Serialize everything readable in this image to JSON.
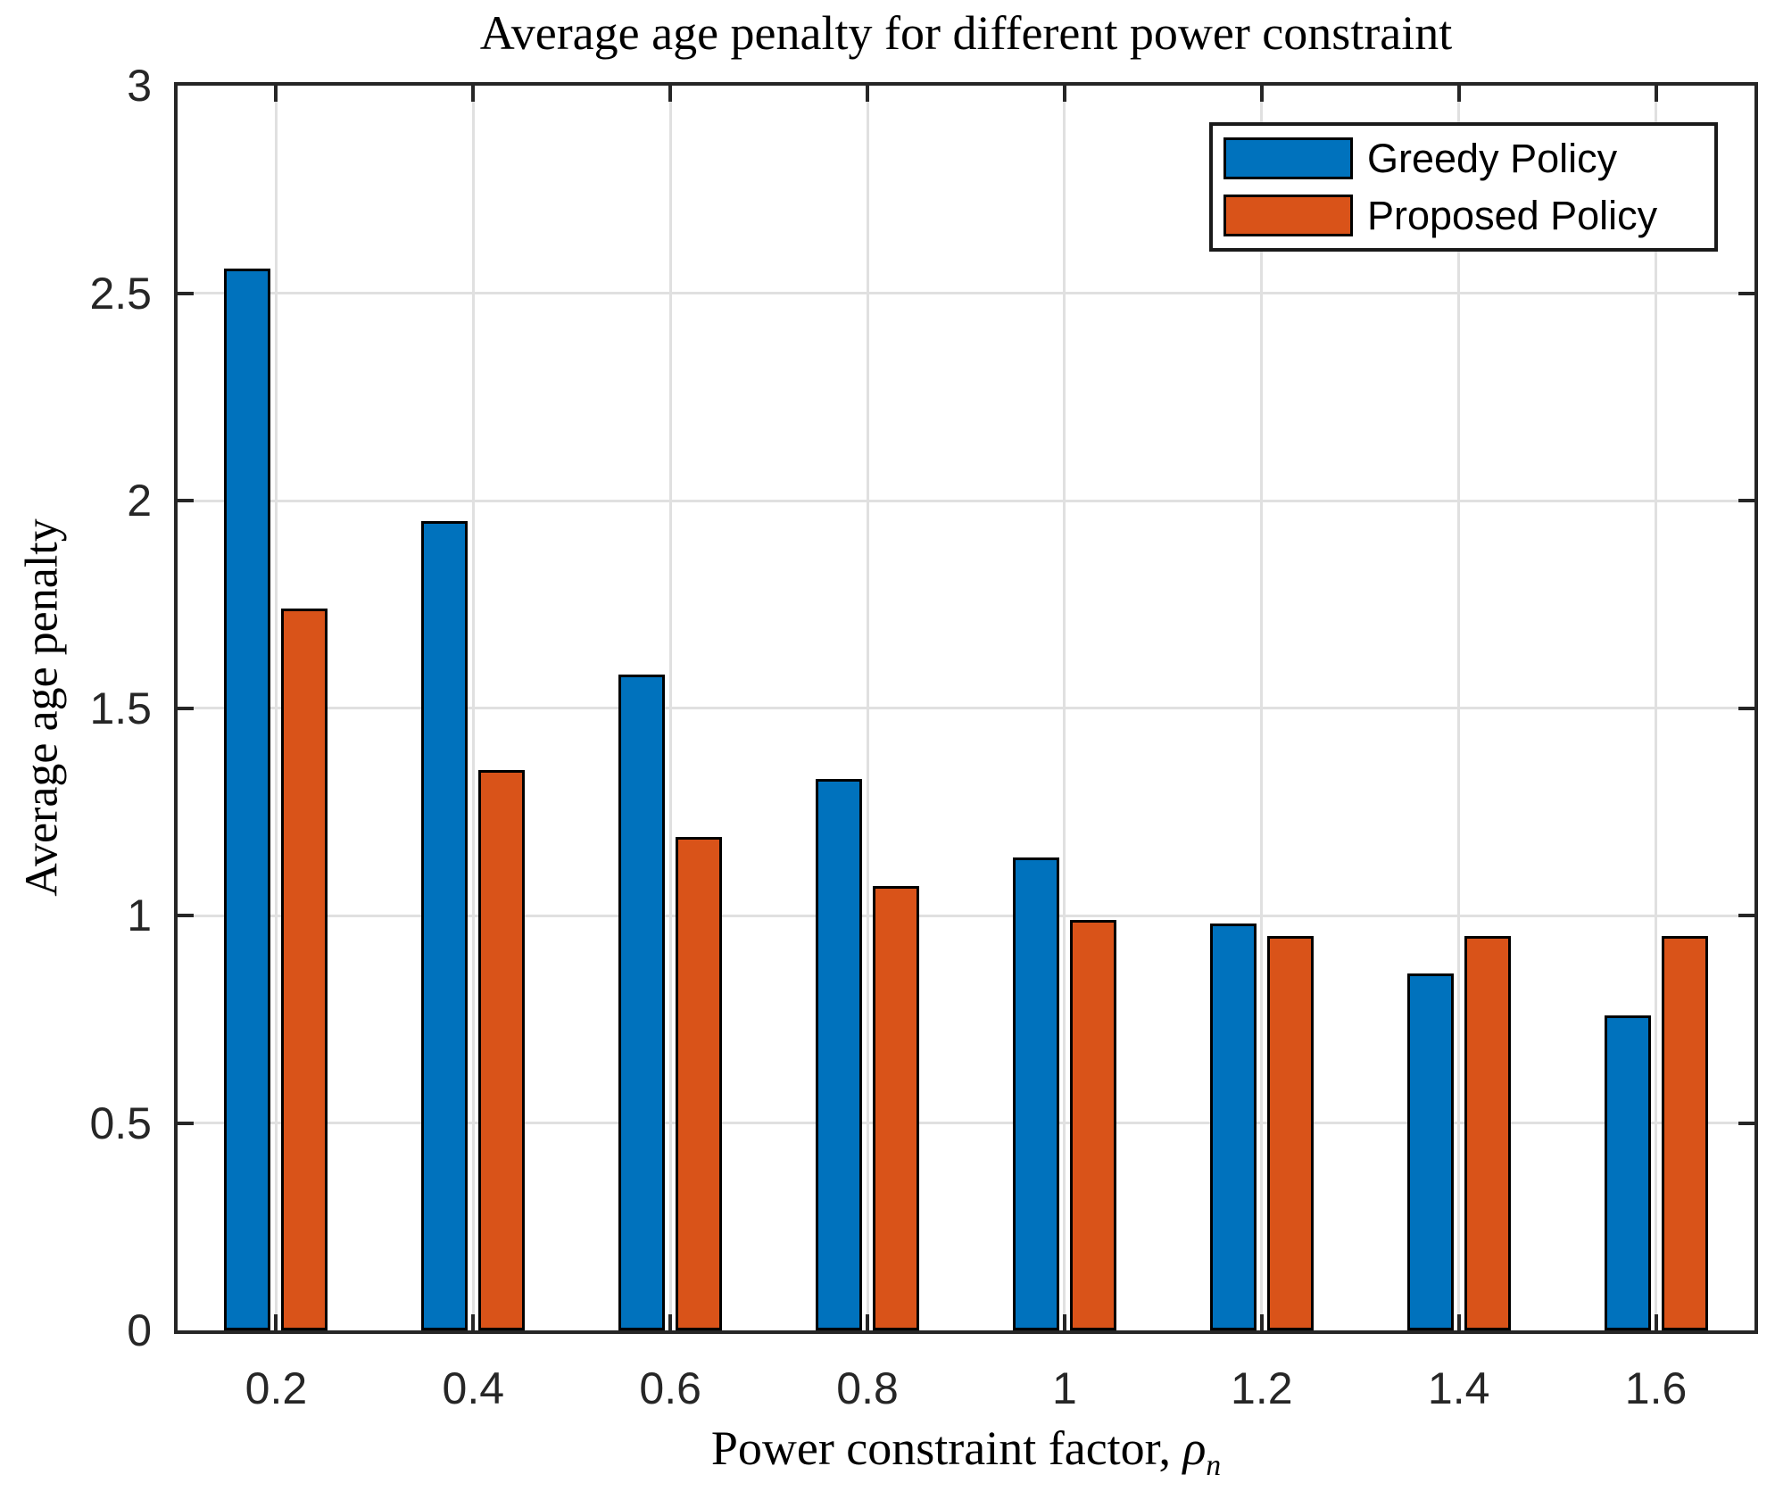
{
  "chart_data": {
    "type": "bar",
    "title": "Average age penalty for different power constraint",
    "ylabel": "Average age penalty",
    "xlabel": {
      "text": "Power constraint factor, ",
      "symbol": "ρ",
      "subscript": "n"
    },
    "categories": [
      "0.2",
      "0.4",
      "0.6",
      "0.8",
      "1",
      "1.2",
      "1.4",
      "1.6"
    ],
    "series": [
      {
        "name": "Greedy Policy",
        "color": "#0072BD",
        "values": [
          2.56,
          1.95,
          1.58,
          1.33,
          1.14,
          0.98,
          0.86,
          0.76
        ]
      },
      {
        "name": "Proposed Policy",
        "color": "#D95319",
        "values": [
          1.74,
          1.35,
          1.19,
          1.07,
          0.99,
          0.95,
          0.95,
          0.95
        ]
      }
    ],
    "ylim": [
      0,
      3
    ],
    "yticks": [
      "0",
      "0.5",
      "1",
      "1.5",
      "2",
      "2.5",
      "3"
    ],
    "grid": true,
    "legend_position": "top-right",
    "colors": {
      "grid": "#e0e0e0",
      "axis": "#262626",
      "bar_edge": "#000000",
      "background": "#ffffff"
    }
  }
}
